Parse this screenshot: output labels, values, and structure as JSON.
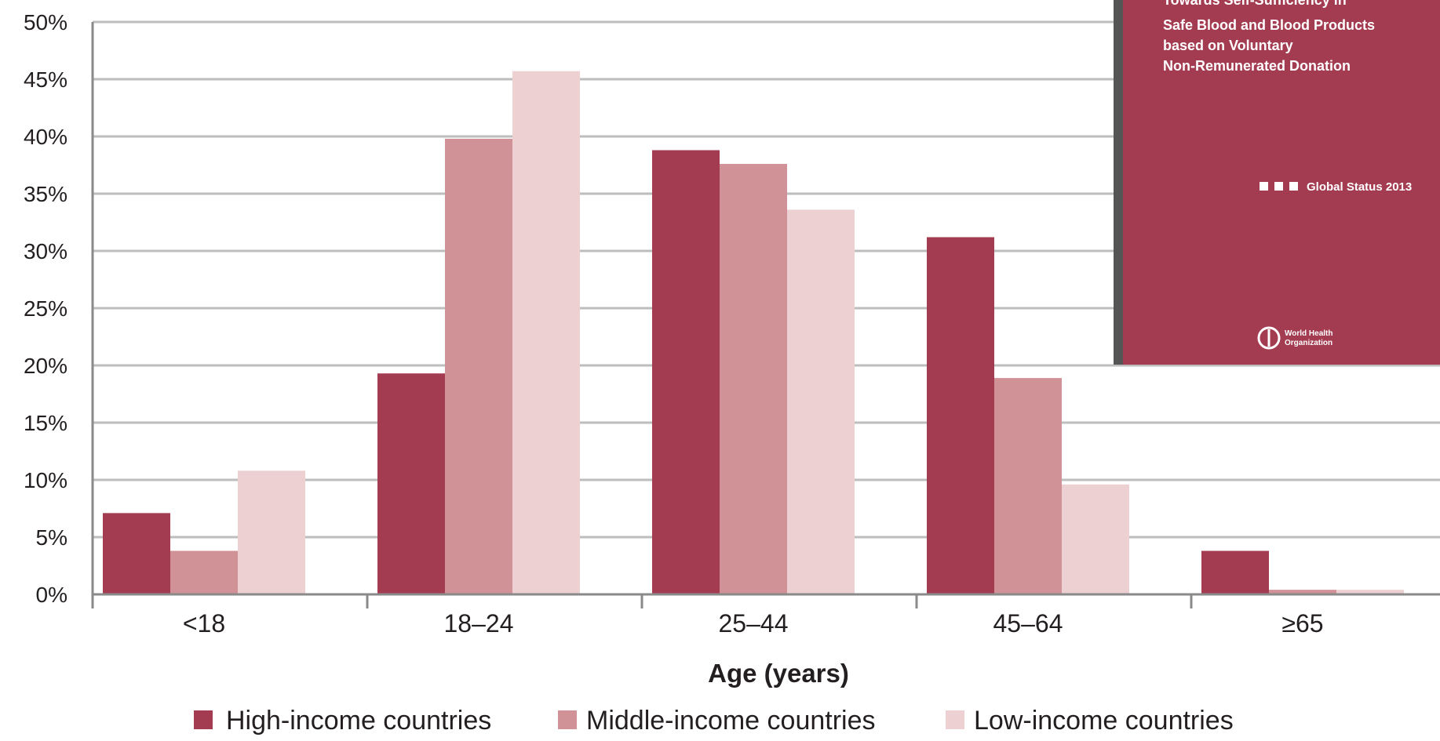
{
  "chart_data": {
    "type": "bar",
    "xlabel": "Age (years)",
    "categories": [
      "<18",
      "18–24",
      "25–44",
      "45–64",
      "≥65"
    ],
    "series": [
      {
        "name": "High-income countries",
        "values": [
          7.1,
          19.3,
          38.8,
          31.2,
          3.8
        ],
        "color": "#a43c51"
      },
      {
        "name": "Middle-income countries",
        "values": [
          3.8,
          39.8,
          37.6,
          18.9,
          0.4
        ],
        "color": "#d09297"
      },
      {
        "name": "Low-income countries",
        "values": [
          10.8,
          45.7,
          33.6,
          9.6,
          0.4
        ],
        "color": "#ecd0d2"
      }
    ],
    "ylim": [
      0,
      50
    ],
    "yticks": [
      "0%",
      "5%",
      "10%",
      "15%",
      "20%",
      "25%",
      "30%",
      "35%",
      "40%",
      "45%",
      "50%"
    ],
    "grid": true,
    "legend": "bottom"
  },
  "inset_cover": {
    "title_lines": [
      "Towards Self-Sufficiency in",
      "Safe Blood and Blood Products",
      "based on Voluntary",
      "Non-Remunerated Donation"
    ],
    "status": "Global Status 2013",
    "logo_text": [
      "World Health",
      "Organization"
    ],
    "background": "#a43c51",
    "edge_color": "#555555"
  }
}
